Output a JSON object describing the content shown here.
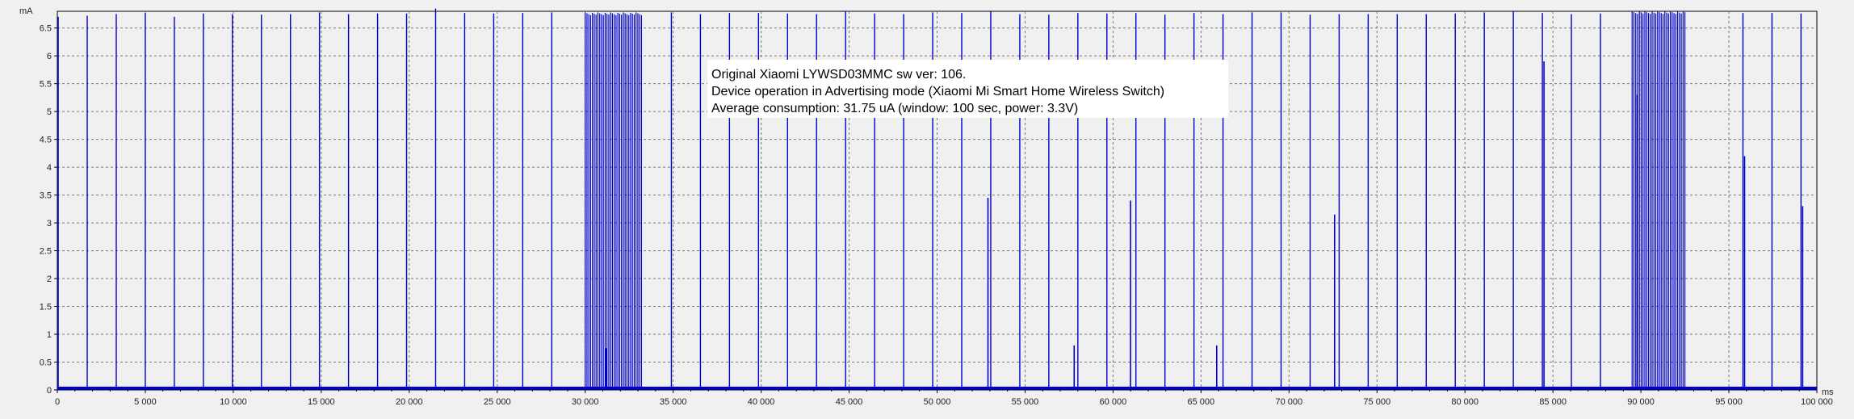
{
  "chart_data": {
    "type": "line",
    "title": "",
    "xlabel": "",
    "ylabel": "",
    "x_unit": "ms",
    "y_unit": "mA",
    "xlim": [
      0,
      100000
    ],
    "ylim": [
      0,
      6.8
    ],
    "grid": true,
    "xticks": [
      0,
      5000,
      10000,
      15000,
      20000,
      25000,
      30000,
      35000,
      40000,
      45000,
      50000,
      55000,
      60000,
      65000,
      70000,
      75000,
      80000,
      85000,
      90000,
      95000,
      100000
    ],
    "xtick_labels": [
      "0",
      "5 000",
      "10 000",
      "15 000",
      "20 000",
      "25 000",
      "30 000",
      "35 000",
      "40 000",
      "45 000",
      "50 000",
      "55 000",
      "60 000",
      "65 000",
      "70 000",
      "75 000",
      "80 000",
      "85 000",
      "90 000",
      "95 000",
      "100 000"
    ],
    "yticks": [
      0,
      0.5,
      1,
      1.5,
      2,
      2.5,
      3,
      3.5,
      4,
      4.5,
      5,
      5.5,
      6,
      6.5
    ],
    "ytick_labels": [
      "0",
      "0.5",
      "1",
      "1.5",
      "2",
      "2.5",
      "3",
      "3.5",
      "4",
      "4.5",
      "5",
      "5.5",
      "6",
      "6.5"
    ],
    "baseline_ma": 0.03,
    "spike_times_ms": [
      1700,
      3350,
      5000,
      6650,
      8300,
      9950,
      11600,
      13250,
      14900,
      16550,
      18200,
      19850,
      21500,
      23150,
      24800,
      26450,
      28100,
      34900,
      36550,
      38200,
      39850,
      41500,
      43150,
      44800,
      46450,
      48100,
      49750,
      51400,
      53050,
      54700,
      56350,
      58000,
      59650,
      61300,
      62950,
      64600,
      66250,
      67900,
      69550,
      71200,
      72850,
      74500,
      76150,
      77800,
      79450,
      81100,
      82750,
      84400,
      86050,
      87700,
      95800,
      97450,
      99100
    ],
    "spike_peaks_ma": [
      6.72,
      6.75,
      6.77,
      6.7,
      6.76,
      6.75,
      6.74,
      6.75,
      6.78,
      6.75,
      6.76,
      6.76,
      6.85,
      6.77,
      6.76,
      6.77,
      6.78,
      6.78,
      6.75,
      6.77,
      6.77,
      6.76,
      6.75,
      6.8,
      6.76,
      6.75,
      6.78,
      6.77,
      6.8,
      6.75,
      6.74,
      6.77,
      6.76,
      6.77,
      6.74,
      6.77,
      6.75,
      6.78,
      6.78,
      6.74,
      6.75,
      6.75,
      6.75,
      6.75,
      6.76,
      6.78,
      6.8,
      6.77,
      6.75,
      6.76,
      6.77,
      6.77,
      6.76
    ],
    "small_spikes": [
      {
        "x": 31100,
        "y": 0.75
      },
      {
        "x": 52800,
        "y": 3.45
      },
      {
        "x": 57700,
        "y": 0.8
      },
      {
        "x": 60900,
        "y": 3.4
      },
      {
        "x": 65800,
        "y": 0.8
      },
      {
        "x": 72500,
        "y": 3.15
      },
      {
        "x": 84400,
        "y": 5.9
      },
      {
        "x": 89700,
        "y": 5.3
      },
      {
        "x": 95800,
        "y": 4.2
      },
      {
        "x": 99100,
        "y": 3.3
      }
    ],
    "bursts": [
      {
        "start_ms": 30000,
        "end_ms": 33200,
        "count": 32,
        "peak_ma": 6.78
      },
      {
        "start_ms": 89500,
        "end_ms": 92500,
        "count": 30,
        "peak_ma": 6.8
      }
    ],
    "line_color": "#0000cc",
    "annotation_lines": [
      "Original Xiaomi LYWSD03MMC sw ver: 106.",
      "Device operation in Advertising mode (Xiaomi Mi Smart Home Wireless Switch)",
      "Average consumption: 31.75 uA (window: 100 sec, power: 3.3V)"
    ]
  }
}
